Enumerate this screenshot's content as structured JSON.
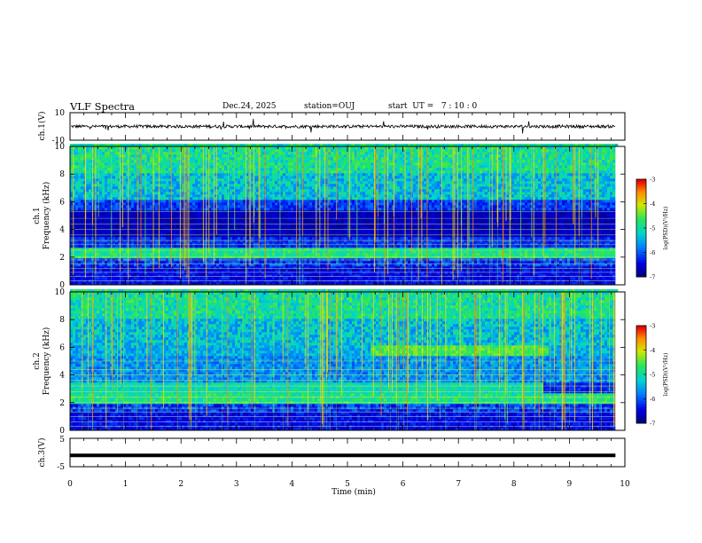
{
  "header": {
    "title": "VLF Spectra",
    "date": "Dec.24, 2025",
    "station": "station=OUJ",
    "start_ut": "start  UT =   7 : 10 : 0"
  },
  "chart_data": [
    {
      "type": "line",
      "panel": "ch1-waveform",
      "ylabel": "ch.1(V)",
      "ylim": [
        -10,
        10
      ],
      "y_tick_labels": [
        "-10",
        "10"
      ],
      "x_range_min": [
        0,
        9.83
      ],
      "baseline_v": 0,
      "grid": false
    },
    {
      "type": "heatmap",
      "panel": "ch1-spectrogram",
      "ylabel": "ch.1\nFrequency (kHz)",
      "ylim": [
        0,
        10
      ],
      "y_tick_labels": [
        "0",
        "2",
        "4",
        "6",
        "8",
        "10"
      ],
      "x_range_min": [
        0,
        9.83
      ],
      "colorbar": {
        "label": "log(PSD)(V²/Hz)",
        "range": [
          -7,
          -3
        ],
        "tick_labels": [
          "-3",
          "-4",
          "-5",
          "-6",
          "-7"
        ]
      },
      "grid": false
    },
    {
      "type": "heatmap",
      "panel": "ch2-spectrogram",
      "ylabel": "ch.2\nFrequency (kHz)",
      "ylim": [
        0,
        10
      ],
      "y_tick_labels": [
        "0",
        "2",
        "4",
        "6",
        "8",
        "10"
      ],
      "x_range_min": [
        0,
        9.83
      ],
      "colorbar": {
        "label": "log(PSD)(V²/Hz)",
        "range": [
          -7,
          -3
        ],
        "tick_labels": [
          "-3",
          "-4",
          "-5",
          "-6",
          "-7"
        ]
      },
      "grid": false
    },
    {
      "type": "line",
      "panel": "ch3-waveform",
      "ylabel": "ch.3(V)",
      "ylim": [
        -5,
        5
      ],
      "y_tick_labels": [
        "-5",
        "5"
      ],
      "x_range_min": [
        0,
        9.83
      ],
      "values_v": [
        -1,
        -1
      ],
      "grid": false
    }
  ],
  "x_axis": {
    "label": "Time  (min)",
    "range": [
      0,
      10
    ],
    "tick_labels": [
      "0",
      "1",
      "2",
      "3",
      "4",
      "5",
      "6",
      "7",
      "8",
      "9",
      "10"
    ]
  },
  "colors": {
    "background": "#ffffff",
    "foreground": "#000000",
    "spectro_low": "#00008b",
    "spectro_mid": "#00c8c8",
    "spectro_high": "#ffff00",
    "spectro_max": "#ff0000"
  }
}
